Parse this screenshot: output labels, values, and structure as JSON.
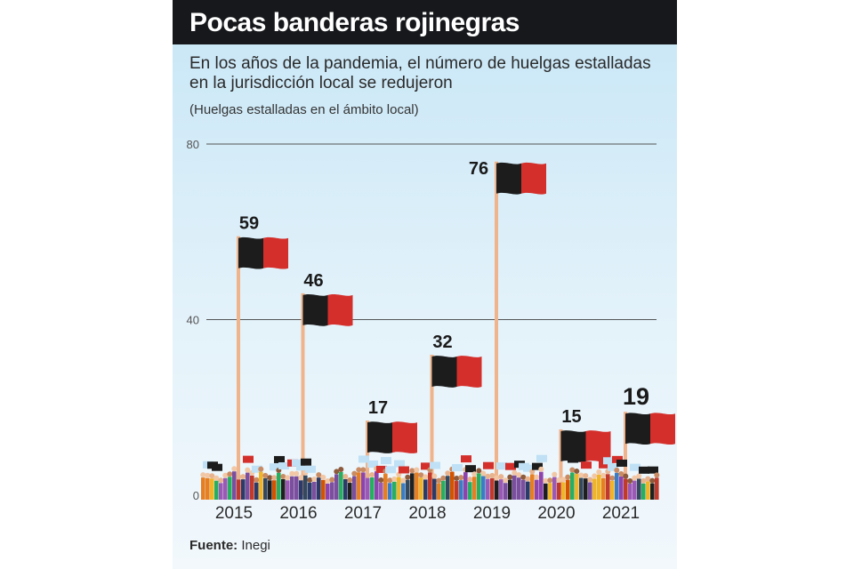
{
  "chart_data": {
    "type": "bar",
    "title": "Pocas banderas rojinegras",
    "subtitle": "En los años de la pandemia, el número de huelgas estalladas en la jurisdicción local se redujeron",
    "note": "(Huelgas estalladas en el ámbito local)",
    "categories": [
      "2015",
      "2016",
      "2017",
      "2018",
      "2019",
      "2020",
      "2021"
    ],
    "values": [
      59,
      46,
      17,
      32,
      76,
      15,
      19
    ],
    "ylim": [
      0,
      80
    ],
    "yticks": [
      0,
      40,
      80
    ],
    "grid": true,
    "xlabel": "",
    "ylabel": ""
  },
  "source": {
    "label": "Fuente:",
    "value": "Inegi"
  },
  "colors": {
    "title_bg": "#16181b",
    "flag_black": "#1c1c1c",
    "flag_red": "#d42f2b",
    "pole": "#f0b48c",
    "gridline": "#555555"
  }
}
